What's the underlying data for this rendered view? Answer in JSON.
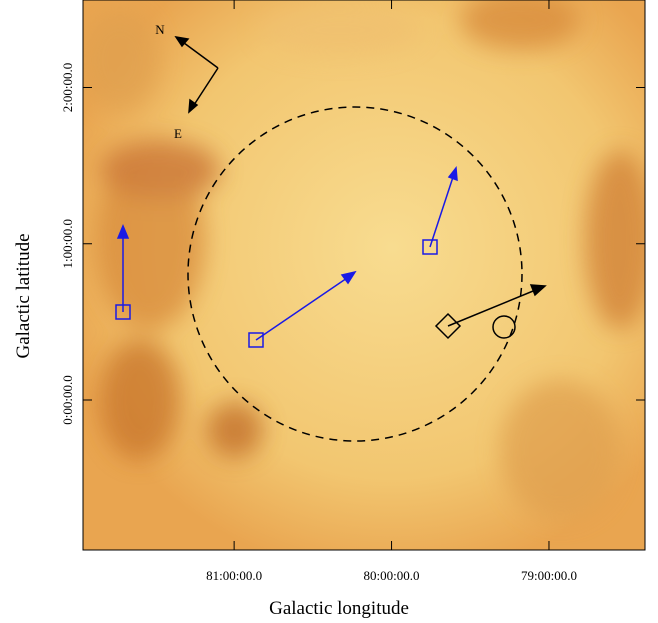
{
  "chart_data": {
    "type": "image",
    "xlabel": "Galactic longitude",
    "ylabel": "Galactic latitude",
    "xlim": [
      81.96,
      78.39
    ],
    "ylim": [
      -0.96,
      2.56
    ],
    "xticks": [
      {
        "value": 81,
        "label": "81:00:00.0"
      },
      {
        "value": 80,
        "label": "80:00:00.0"
      },
      {
        "value": 79,
        "label": "79:00:00.0"
      }
    ],
    "yticks": [
      {
        "value": 2,
        "label": "2:00:00.0"
      },
      {
        "value": 1,
        "label": "1:00:00.0"
      },
      {
        "value": 0,
        "label": "0:00:00.0"
      }
    ],
    "annotations": [
      "N",
      "E"
    ]
  }
}
